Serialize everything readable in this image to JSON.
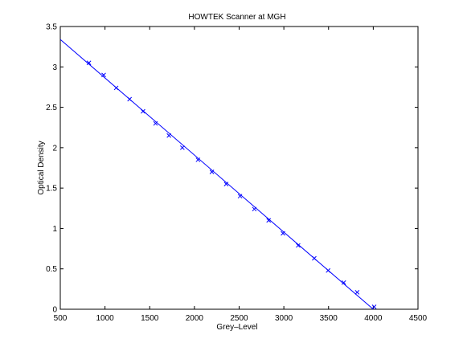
{
  "chart_data": {
    "type": "scatter",
    "title": "HOWTEK Scanner at MGH",
    "xlabel": "Grey–Level",
    "ylabel": "Optical Density",
    "xlim": [
      500,
      4500
    ],
    "ylim": [
      0,
      3.5
    ],
    "xticks": [
      500,
      1000,
      1500,
      2000,
      2500,
      3000,
      3500,
      4000,
      4500
    ],
    "xtick_labels": [
      "500",
      "1000",
      "1500",
      "2000",
      "2500",
      "3000",
      "3500",
      "4000",
      "4500"
    ],
    "yticks": [
      0,
      0.5,
      1,
      1.5,
      2,
      2.5,
      3,
      3.5
    ],
    "ytick_labels": [
      "0",
      "0.5",
      "1",
      "1.5",
      "2",
      "2.5",
      "3",
      "3.5"
    ],
    "grid": false,
    "colors": {
      "line": "#0000ff",
      "markers": "#0000ff",
      "axes": "#000000",
      "background": "#ffffff"
    },
    "series": [
      {
        "kind": "points",
        "marker": "x",
        "x": [
          820,
          985,
          1125,
          1275,
          1425,
          1565,
          1715,
          1865,
          2040,
          2195,
          2355,
          2510,
          2670,
          2830,
          2990,
          3160,
          3340,
          3495,
          3670,
          3820,
          4010
        ],
        "y": [
          3.05,
          2.9,
          2.74,
          2.6,
          2.45,
          2.3,
          2.15,
          2.0,
          1.85,
          1.7,
          1.55,
          1.4,
          1.24,
          1.1,
          0.94,
          0.79,
          0.63,
          0.48,
          0.33,
          0.21,
          0.03
        ]
      },
      {
        "kind": "fit-line",
        "x": [
          500,
          4000
        ],
        "y": [
          3.34,
          0.0
        ]
      }
    ]
  }
}
